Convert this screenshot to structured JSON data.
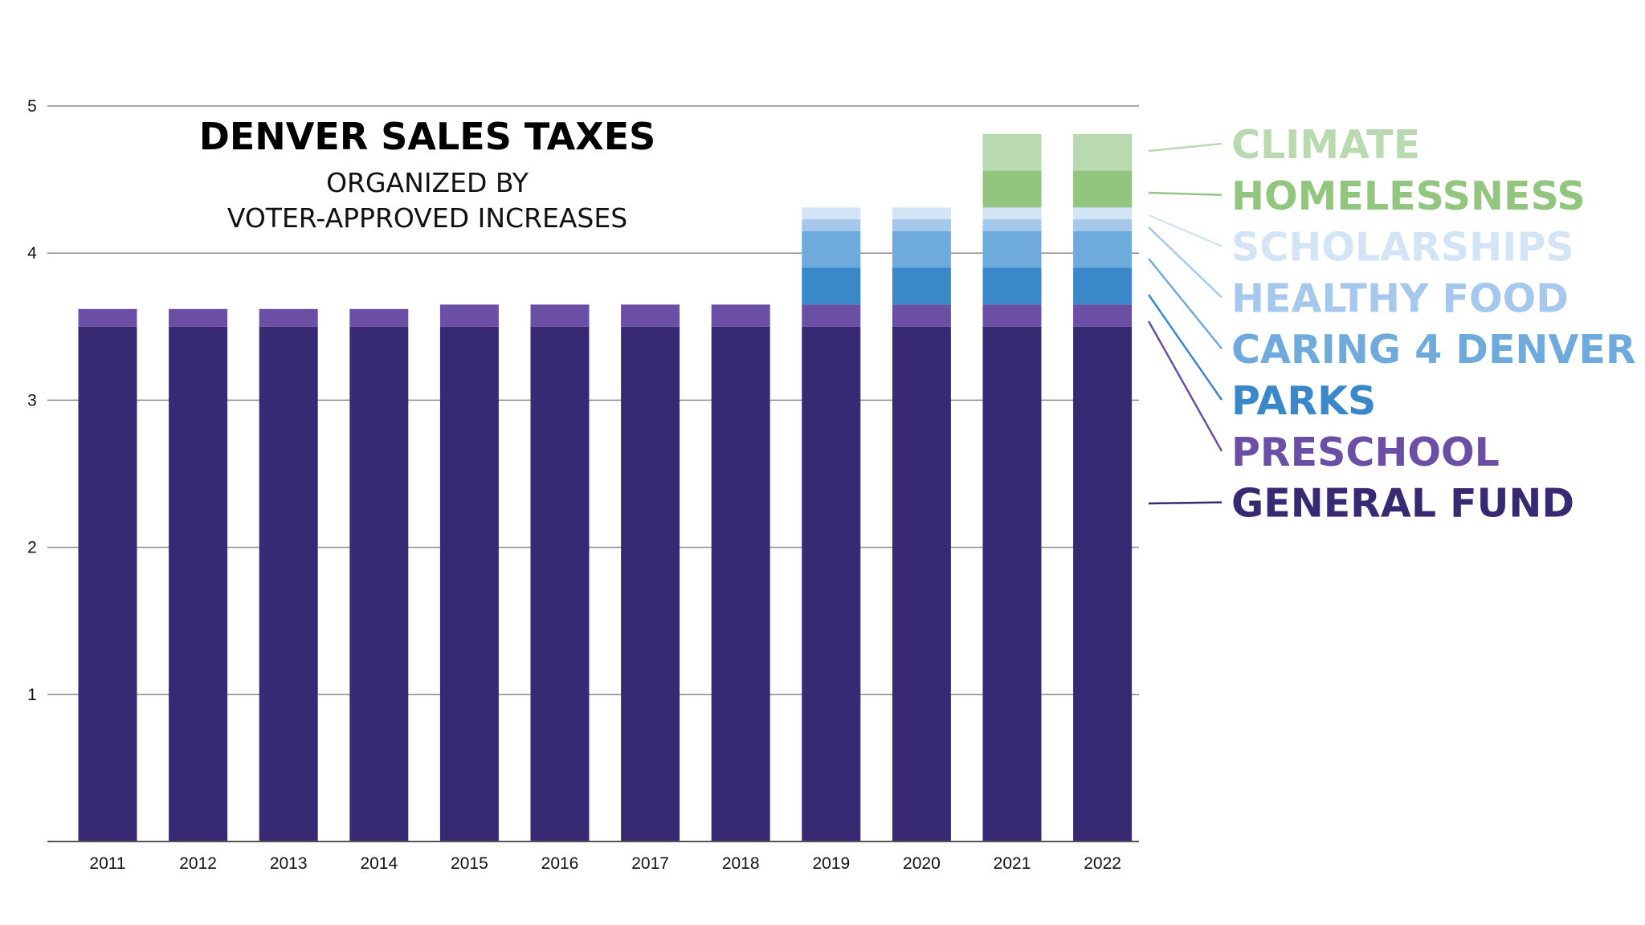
{
  "chart_data": {
    "type": "bar",
    "stacked": true,
    "title": "DENVER SALES TAXES",
    "subtitle_lines": [
      "ORGANIZED BY",
      "VOTER-APPROVED INCREASES"
    ],
    "xlabel": "",
    "ylabel": "",
    "ylim": [
      0,
      5
    ],
    "yticks": [
      1,
      2,
      3,
      4,
      5
    ],
    "grid": true,
    "legend_position": "right",
    "categories": [
      "2011",
      "2012",
      "2013",
      "2014",
      "2015",
      "2016",
      "2017",
      "2018",
      "2019",
      "2020",
      "2021",
      "2022"
    ],
    "series": [
      {
        "name": "GENERAL FUND",
        "color": "#372a72",
        "values": [
          3.5,
          3.5,
          3.5,
          3.5,
          3.5,
          3.5,
          3.5,
          3.5,
          3.5,
          3.5,
          3.5,
          3.5
        ]
      },
      {
        "name": "PRESCHOOL",
        "color": "#6a4fa5",
        "values": [
          0.12,
          0.12,
          0.12,
          0.12,
          0.15,
          0.15,
          0.15,
          0.15,
          0.15,
          0.15,
          0.15,
          0.15
        ]
      },
      {
        "name": "PARKS",
        "color": "#3a88c9",
        "values": [
          0,
          0,
          0,
          0,
          0,
          0,
          0,
          0,
          0.25,
          0.25,
          0.25,
          0.25
        ]
      },
      {
        "name": "CARING 4 DENVER",
        "color": "#6faadc",
        "values": [
          0,
          0,
          0,
          0,
          0,
          0,
          0,
          0,
          0.25,
          0.25,
          0.25,
          0.25
        ]
      },
      {
        "name": "HEALTHY FOOD",
        "color": "#a5c8ec",
        "values": [
          0,
          0,
          0,
          0,
          0,
          0,
          0,
          0,
          0.08,
          0.08,
          0.08,
          0.08
        ]
      },
      {
        "name": "SCHOLARSHIPS",
        "color": "#d3e4f6",
        "values": [
          0,
          0,
          0,
          0,
          0,
          0,
          0,
          0,
          0.08,
          0.08,
          0.08,
          0.08
        ]
      },
      {
        "name": "HOMELESSNESS",
        "color": "#92c57e",
        "values": [
          0,
          0,
          0,
          0,
          0,
          0,
          0,
          0,
          0,
          0,
          0.25,
          0.25
        ]
      },
      {
        "name": "CLIMATE",
        "color": "#b9dab0",
        "values": [
          0,
          0,
          0,
          0,
          0,
          0,
          0,
          0,
          0,
          0,
          0.25,
          0.25
        ]
      }
    ],
    "legend_order": [
      "CLIMATE",
      "HOMELESSNESS",
      "SCHOLARSHIPS",
      "HEALTHY FOOD",
      "CARING 4 DENVER",
      "PARKS",
      "PRESCHOOL",
      "GENERAL FUND"
    ]
  }
}
